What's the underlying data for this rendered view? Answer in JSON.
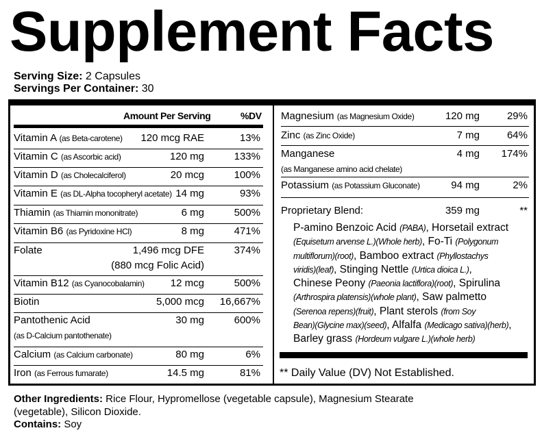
{
  "title": "Supplement Facts",
  "serving": {
    "size_label": "Serving Size:",
    "size_value": " 2 Capsules",
    "per_container_label": "Servings Per Container:",
    "per_container_value": " 30"
  },
  "headers": {
    "amount": "Amount Per Serving",
    "dv": "%DV"
  },
  "left_rows": [
    {
      "name": "Vitamin A",
      "source": "(as Beta-carotene)",
      "amount": "120 mcg RAE",
      "dv": "13%"
    },
    {
      "name": "Vitamin C",
      "source": "(as Ascorbic acid)",
      "amount": "120 mg",
      "dv": "133%"
    },
    {
      "name": "Vitamin D",
      "source": "(as Cholecalciferol)",
      "amount": "20 mcg",
      "dv": "100%"
    },
    {
      "name": "Vitamin E",
      "source": "(as DL-Alpha tocopheryl acetate)",
      "amount": "14 mg",
      "dv": "93%"
    },
    {
      "name": "Thiamin",
      "source": "(as Thiamin mononitrate)",
      "amount": "6 mg",
      "dv": "500%"
    },
    {
      "name": "Vitamin B6",
      "source": "(as Pyridoxine HCl)",
      "amount": "8 mg",
      "dv": "471%"
    },
    {
      "name": "Folate",
      "source": "",
      "amount": "1,496 mcg DFE",
      "amount2": "(880 mcg Folic Acid)",
      "dv": "374%"
    },
    {
      "name": "Vitamin B12",
      "source": "(as Cyanocobalamin)",
      "amount": "12 mcg",
      "dv": "500%"
    },
    {
      "name": "Biotin",
      "source": "",
      "amount": "5,000 mcg",
      "dv": "16,667%"
    },
    {
      "name": "Pantothenic Acid",
      "source2": "(as  D-Calcium pantothenate)",
      "source": "",
      "amount": "30 mg",
      "dv": "600%"
    },
    {
      "name": "Calcium",
      "source": "(as Calcium carbonate)",
      "amount": "80 mg",
      "dv": "6%"
    },
    {
      "name": "Iron",
      "source": "(as Ferrous fumarate)",
      "amount": "14.5 mg",
      "dv": "81%"
    }
  ],
  "right_rows": [
    {
      "name": "Magnesium",
      "source": "(as Magnesium Oxide)",
      "amount": "120 mg",
      "dv": "29%"
    },
    {
      "name": "Zinc",
      "source": "(as Zinc Oxide)",
      "amount": "7 mg",
      "dv": "64%"
    },
    {
      "name": "Manganese",
      "source": "",
      "source2": "(as Manganese amino acid chelate)",
      "amount": "4 mg",
      "dv": "174%"
    },
    {
      "name": "Potassium",
      "source": "(as Potassium Gluconate)",
      "amount": "94 mg",
      "dv": "2%"
    }
  ],
  "blend": {
    "name": "Proprietary Blend:",
    "amount": "359 mg",
    "dv": "**",
    "lines": [
      [
        {
          "t": "P-amino Benzoic Acid "
        },
        {
          "t": "(PABA)",
          "i": true
        },
        {
          "t": ", Horsetail extract"
        }
      ],
      [
        {
          "t": "(Equisetum arvense L.)(Whole herb)",
          "i": true
        },
        {
          "t": ", Fo-Ti "
        },
        {
          "t": "(Polygonum",
          "i": true
        }
      ],
      [
        {
          "t": "multiflorum)(root)",
          "i": true
        },
        {
          "t": ", Bamboo extract "
        },
        {
          "t": "(Phyllostachys",
          "i": true
        }
      ],
      [
        {
          "t": "viridis)(leaf)",
          "i": true
        },
        {
          "t": ", Stinging Nettle  "
        },
        {
          "t": "(Urtica dioica L.)",
          "i": true
        },
        {
          "t": ","
        }
      ],
      [
        {
          "t": "Chinese Peony "
        },
        {
          "t": "(Paeonia lactiflora)(root)",
          "i": true
        },
        {
          "t": ", Spirulina"
        }
      ],
      [
        {
          "t": "(Arthrospira platensis)(whole plant)",
          "i": true
        },
        {
          "t": ", Saw palmetto"
        }
      ],
      [
        {
          "t": "(Serenoa repens)(fruit)",
          "i": true
        },
        {
          "t": ", Plant sterols "
        },
        {
          "t": "(from Soy",
          "i": true
        }
      ],
      [
        {
          "t": "Bean)(Glycine max)(seed)",
          "i": true
        },
        {
          "t": ", Alfalfa "
        },
        {
          "t": "(Medicago sativa)(herb)",
          "i": true
        },
        {
          "t": ","
        }
      ],
      [
        {
          "t": "Barley grass "
        },
        {
          "t": "(Hordeum vulgare L.)(whole herb)",
          "i": true
        }
      ]
    ]
  },
  "footnote": "** Daily Value (DV) Not Established.",
  "other": {
    "label": "Other Ingredients:",
    "line1": " Rice Flour, Hypromellose (vegetable capsule), Magnesium Stearate",
    "line2": "(vegetable), Silicon Dioxide.",
    "contains_label": "Contains:",
    "contains_value": " Soy"
  }
}
